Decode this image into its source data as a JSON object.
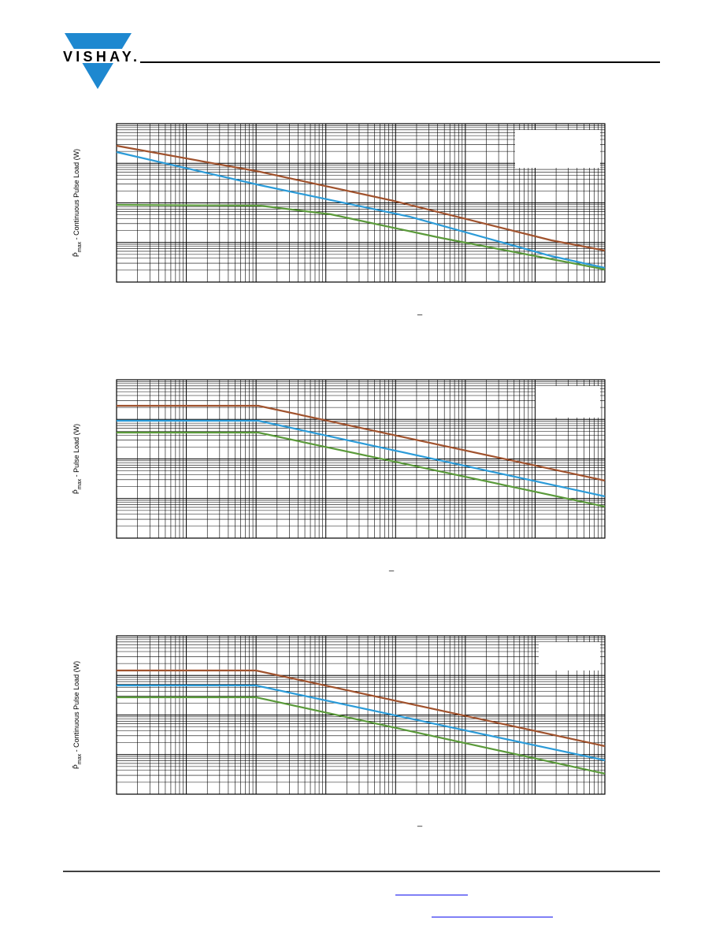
{
  "header": {
    "logo": "VISHAY."
  },
  "charts": [
    {
      "y_label": {
        "symbol": "P̂",
        "subscript": "max",
        "text": " - Continuous Pulse Load  (W)"
      },
      "x_mark": "_"
    },
    {
      "y_label": {
        "symbol": "P̂",
        "subscript": "max",
        "text": " - Pulse Load  (W)"
      },
      "x_mark": "_"
    },
    {
      "y_label": {
        "symbol": "P̂",
        "subscript": "max",
        "text": " - Continuous Pulse Load  (W)"
      },
      "x_mark": "_"
    }
  ]
}
